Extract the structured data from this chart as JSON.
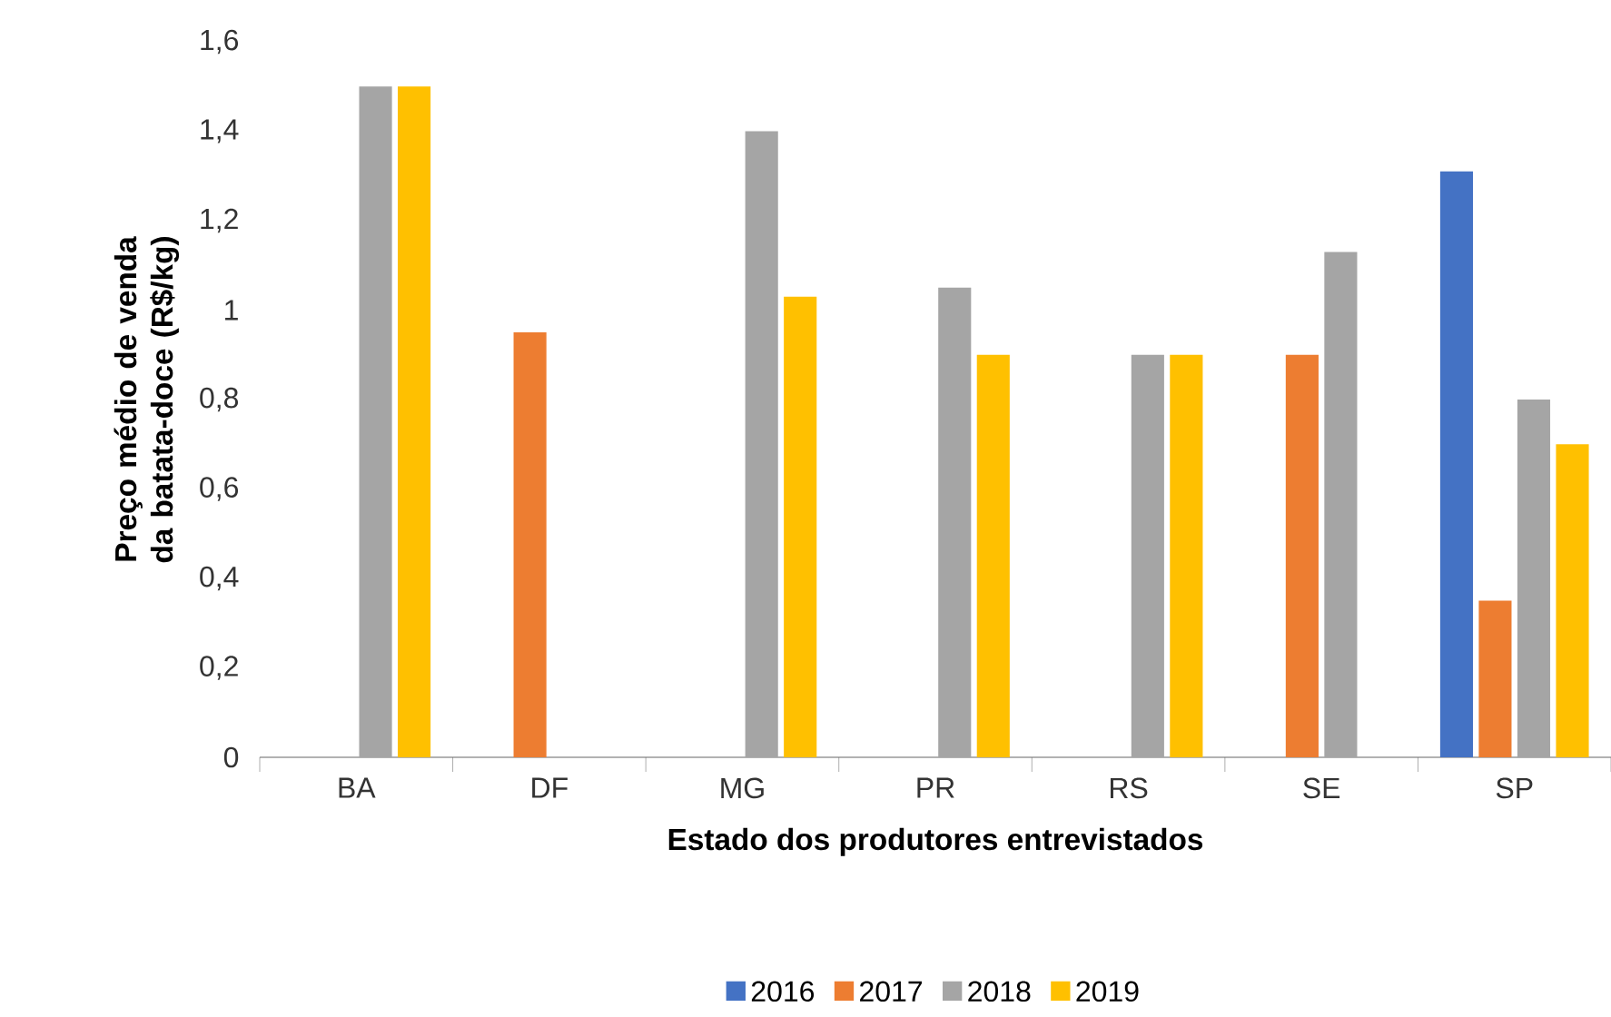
{
  "chart_data": {
    "type": "bar",
    "xlabel": "Estado dos produtores entrevistados",
    "ylabel": "Preço médio de venda da batata-doce (R$/kg)",
    "categories": [
      "BA",
      "DF",
      "MG",
      "PR",
      "RS",
      "SE",
      "SP"
    ],
    "series": [
      {
        "name": "2016",
        "color": "#4472c4",
        "values": [
          null,
          null,
          null,
          null,
          null,
          null,
          1.31
        ]
      },
      {
        "name": "2017",
        "color": "#ed7d31",
        "values": [
          null,
          0.95,
          null,
          null,
          null,
          0.9,
          0.35
        ]
      },
      {
        "name": "2018",
        "color": "#a5a5a5",
        "values": [
          1.5,
          null,
          1.4,
          1.05,
          0.9,
          1.13,
          0.8
        ]
      },
      {
        "name": "2019",
        "color": "#ffc000",
        "values": [
          1.5,
          null,
          1.03,
          0.9,
          0.9,
          null,
          0.7
        ]
      }
    ],
    "ylim": [
      0,
      1.6
    ],
    "yticks": [
      0,
      {
        "value": 0.2,
        "label": "0,2"
      },
      {
        "value": 0.4,
        "label": "0,4"
      },
      {
        "value": 0.6,
        "label": "0,6"
      },
      {
        "value": 0.8,
        "label": "0,8"
      },
      1,
      {
        "value": 1.2,
        "label": "1,2"
      },
      {
        "value": 1.4,
        "label": "1,4"
      },
      {
        "value": 1.6,
        "label": "1,6"
      }
    ],
    "grid": false,
    "legend": "bottom"
  }
}
